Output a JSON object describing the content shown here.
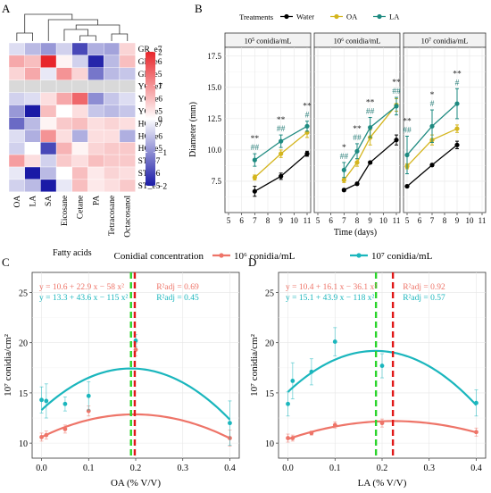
{
  "panels": {
    "A": "A",
    "B": "B",
    "C": "C",
    "D": "D"
  },
  "chart_data": [
    {
      "type": "heatmap",
      "panel": "A",
      "rows": [
        "GR_e7",
        "GR_e6",
        "GR_e5",
        "YG_e7",
        "YG_e6",
        "YG_e5",
        "HG_e7",
        "HG_e6",
        "HG_e5",
        "ST_e7",
        "ST_e6",
        "ST_e5"
      ],
      "columns": [
        "OA",
        "LA",
        "SA",
        "Eicosane",
        "Cetane",
        "PA",
        "Tetracosane",
        "Octacosanol"
      ],
      "xlabel": "Fatty acids",
      "scale": {
        "min": -2,
        "max": 2,
        "ticks": [
          2,
          1,
          0,
          -1,
          -2
        ],
        "tick_labels": [
          "2",
          "1",
          "0",
          "−1",
          "−2"
        ],
        "low_color": "#1a1aa6",
        "mid_color": "#ffffff",
        "high_color": "#e8262b",
        "na_color": "#d9d9d9"
      },
      "values": [
        [
          -0.3,
          -0.6,
          -0.9,
          -0.4,
          -1.6,
          -0.7,
          -0.8,
          0.4
        ],
        [
          0.8,
          0.6,
          2.0,
          0.1,
          -0.4,
          -1.9,
          -0.6,
          0.6
        ],
        [
          0.4,
          0.8,
          -0.2,
          1.0,
          0.4,
          -1.2,
          -0.6,
          -0.5
        ],
        [
          null,
          null,
          null,
          null,
          null,
          null,
          null,
          null
        ],
        [
          -0.4,
          -0.3,
          0.3,
          0.8,
          1.4,
          -1.0,
          -0.5,
          -0.3
        ],
        [
          -0.9,
          -2.0,
          0.6,
          0.0,
          0.3,
          -0.5,
          -0.6,
          -0.5
        ],
        [
          -1.3,
          -0.6,
          0.1,
          0.5,
          0.6,
          0.3,
          0.4,
          0.3
        ],
        [
          -0.3,
          -0.7,
          1.0,
          0.3,
          -0.7,
          0.3,
          0.3,
          -0.7
        ],
        [
          -0.4,
          0.0,
          -1.6,
          0.7,
          0.1,
          0.4,
          0.5,
          0.5
        ],
        [
          0.9,
          0.3,
          -0.4,
          0.5,
          0.3,
          0.6,
          0.5,
          0.5
        ],
        [
          -0.2,
          -2.0,
          -0.6,
          0.0,
          0.6,
          0.2,
          0.4,
          0.3
        ],
        [
          -0.4,
          -0.6,
          -2.0,
          -0.2,
          0.6,
          0.2,
          0.3,
          0.5
        ]
      ]
    },
    {
      "type": "line",
      "panel": "B",
      "legend_title": "Treatments",
      "series_names": [
        "Water",
        "OA",
        "LA"
      ],
      "series_colors": [
        "#000000",
        "#d4b51d",
        "#1e8a80"
      ],
      "ylabel": "Diameter (mm)",
      "xlabel": "Time (days)",
      "ylim": [
        5,
        18.2
      ],
      "yticks": [
        7.5,
        10.0,
        12.5,
        15.0,
        17.5
      ],
      "ytick_labels": [
        "7.5",
        "10.0",
        "12.5",
        "15.0",
        "17.5"
      ],
      "xlim": [
        5,
        11
      ],
      "xticks": [
        5,
        6,
        7,
        8,
        9,
        10,
        11
      ],
      "xtick_labels": [
        "5",
        "6",
        "7",
        "8",
        "9",
        "10",
        "11"
      ],
      "facets": [
        {
          "strip": "10⁵ conidia/mL",
          "x": [
            7,
            9,
            11
          ],
          "series": [
            {
              "name": "Water",
              "values": [
                6.7,
                7.9,
                9.7
              ],
              "err": [
                0.4,
                0.25,
                0.2
              ]
            },
            {
              "name": "OA",
              "values": [
                7.8,
                9.7,
                11.4
              ],
              "err": [
                0.2,
                0.3,
                0.4
              ]
            },
            {
              "name": "LA",
              "values": [
                9.2,
                10.7,
                11.9
              ],
              "err": [
                0.5,
                0.5,
                0.4
              ]
            }
          ],
          "annotations": [
            {
              "x": 7,
              "lines": [
                "**",
                "##"
              ]
            },
            {
              "x": 9,
              "lines": [
                "**",
                "##"
              ]
            },
            {
              "x": 11,
              "lines": [
                "**",
                "#"
              ]
            }
          ]
        },
        {
          "strip": "10⁶ conidia/mL",
          "x": [
            7,
            8,
            9,
            11
          ],
          "series": [
            {
              "name": "Water",
              "values": [
                6.8,
                7.3,
                9.0,
                10.8
              ],
              "err": [
                0.1,
                0.1,
                0.1,
                0.4
              ]
            },
            {
              "name": "OA",
              "values": [
                7.6,
                9.0,
                11.0,
                13.6
              ],
              "err": [
                0.2,
                0.3,
                0.6,
                0.5
              ]
            },
            {
              "name": "LA",
              "values": [
                8.4,
                9.9,
                11.8,
                13.5
              ],
              "err": [
                0.6,
                0.6,
                0.8,
                0.7
              ]
            }
          ],
          "annotations": [
            {
              "x": 7,
              "lines": [
                "*",
                "##"
              ]
            },
            {
              "x": 8,
              "lines": [
                "**",
                "##"
              ]
            },
            {
              "x": 9,
              "lines": [
                "**",
                "##"
              ]
            },
            {
              "x": 11,
              "lines": [
                "**",
                "##"
              ]
            }
          ]
        },
        {
          "strip": "10⁷ conidia/mL",
          "x": [
            5,
            7,
            9
          ],
          "series": [
            {
              "name": "Water",
              "values": [
                7.1,
                8.8,
                10.4
              ],
              "err": [
                0.1,
                0.1,
                0.3
              ]
            },
            {
              "name": "OA",
              "values": [
                8.7,
                10.8,
                11.7
              ],
              "err": [
                0.2,
                0.4,
                0.3
              ]
            },
            {
              "name": "LA",
              "values": [
                9.6,
                11.9,
                13.7
              ],
              "err": [
                1.5,
                1.3,
                1.2
              ]
            }
          ],
          "annotations": [
            {
              "x": 5,
              "lines": [
                "**",
                "##"
              ]
            },
            {
              "x": 7,
              "lines": [
                "*",
                "#"
              ]
            },
            {
              "x": 9,
              "lines": [
                "**",
                "#"
              ]
            }
          ]
        }
      ]
    },
    {
      "type": "scatter",
      "panel": "C",
      "legend_title": "Conidial concentration",
      "legend": [
        "10⁶ conidia/mL",
        "10⁷ conidia/mL"
      ],
      "colors": [
        "#ee7468",
        "#1ab6bd"
      ],
      "xlabel": "OA (% V/V)",
      "ylabel": "10⁷ conidia/cm²",
      "xlim": [
        -0.02,
        0.42
      ],
      "ylim": [
        8.5,
        27
      ],
      "xticks": [
        0.0,
        0.1,
        0.2,
        0.3,
        0.4
      ],
      "xtick_labels": [
        "0.0",
        "0.1",
        "0.2",
        "0.3",
        "0.4"
      ],
      "yticks": [
        10,
        15,
        20,
        25
      ],
      "ytick_labels": [
        "10",
        "15",
        "20",
        "25"
      ],
      "equations": [
        "y = 10.6 + 22.9  x − 58  x²",
        "y = 13.3 + 43.6  x − 115  x²"
      ],
      "r2": [
        "R²adj = 0.69",
        "R²adj = 0.45"
      ],
      "series": [
        {
          "name": "10⁶ conidia/mL",
          "x": [
            0.0,
            0.01,
            0.05,
            0.1,
            0.2,
            0.4
          ],
          "y": [
            10.6,
            10.8,
            11.4,
            13.2,
            19.3,
            10.5
          ],
          "err": [
            0.4,
            0.4,
            0.4,
            0.5,
            0.6,
            0.8
          ],
          "fit": [
            10.6,
            22.9,
            -58
          ]
        },
        {
          "name": "10⁷ conidia/mL",
          "x": [
            0.0,
            0.01,
            0.05,
            0.1,
            0.2,
            0.4
          ],
          "y": [
            14.3,
            14.2,
            13.9,
            14.7,
            20.2,
            12.0
          ],
          "err": [
            1.3,
            1.7,
            0.7,
            1.4,
            0.6,
            2.2
          ],
          "fit": [
            13.3,
            43.6,
            -115
          ]
        }
      ],
      "vlines": [
        {
          "x": 0.19,
          "color": "#2ad42a"
        },
        {
          "x": 0.198,
          "color": "#e01818"
        }
      ]
    },
    {
      "type": "scatter",
      "panel": "D",
      "legend_title": "Conidial concentration",
      "legend": [
        "10⁶ conidia/mL",
        "10⁷ conidia/mL"
      ],
      "colors": [
        "#ee7468",
        "#1ab6bd"
      ],
      "xlabel": "LA (% V/V)",
      "ylabel": "10⁷ conidia/cm²",
      "xlim": [
        -0.02,
        0.42
      ],
      "ylim": [
        8.5,
        27
      ],
      "xticks": [
        0.0,
        0.1,
        0.2,
        0.3,
        0.4
      ],
      "xtick_labels": [
        "0.0",
        "0.1",
        "0.2",
        "0.3",
        "0.4"
      ],
      "yticks": [
        10,
        15,
        20,
        25
      ],
      "ytick_labels": [
        "10",
        "15",
        "20",
        "25"
      ],
      "equations": [
        "y = 10.4 + 16.1  x − 36.1  x²",
        "y = 15.1 + 43.9  x − 118  x²"
      ],
      "r2": [
        "R²adj = 0.92",
        "R²adj = 0.57"
      ],
      "series": [
        {
          "name": "10⁶ conidia/mL",
          "x": [
            0.0,
            0.01,
            0.05,
            0.1,
            0.2,
            0.4
          ],
          "y": [
            10.5,
            10.5,
            11.0,
            11.8,
            12.0,
            11.1
          ],
          "err": [
            0.4,
            0.3,
            0.2,
            0.3,
            0.4,
            0.4
          ],
          "fit": [
            10.4,
            16.1,
            -36.1
          ]
        },
        {
          "name": "10⁷ conidia/mL",
          "x": [
            0.0,
            0.01,
            0.05,
            0.1,
            0.2,
            0.4
          ],
          "y": [
            13.9,
            16.2,
            17.1,
            20.1,
            17.7,
            14.0
          ],
          "err": [
            1.2,
            1.8,
            1.3,
            1.4,
            1.2,
            1.3
          ],
          "fit": [
            15.1,
            43.9,
            -118
          ]
        }
      ],
      "vlines": [
        {
          "x": 0.187,
          "color": "#2ad42a"
        },
        {
          "x": 0.223,
          "color": "#e01818"
        }
      ]
    }
  ]
}
